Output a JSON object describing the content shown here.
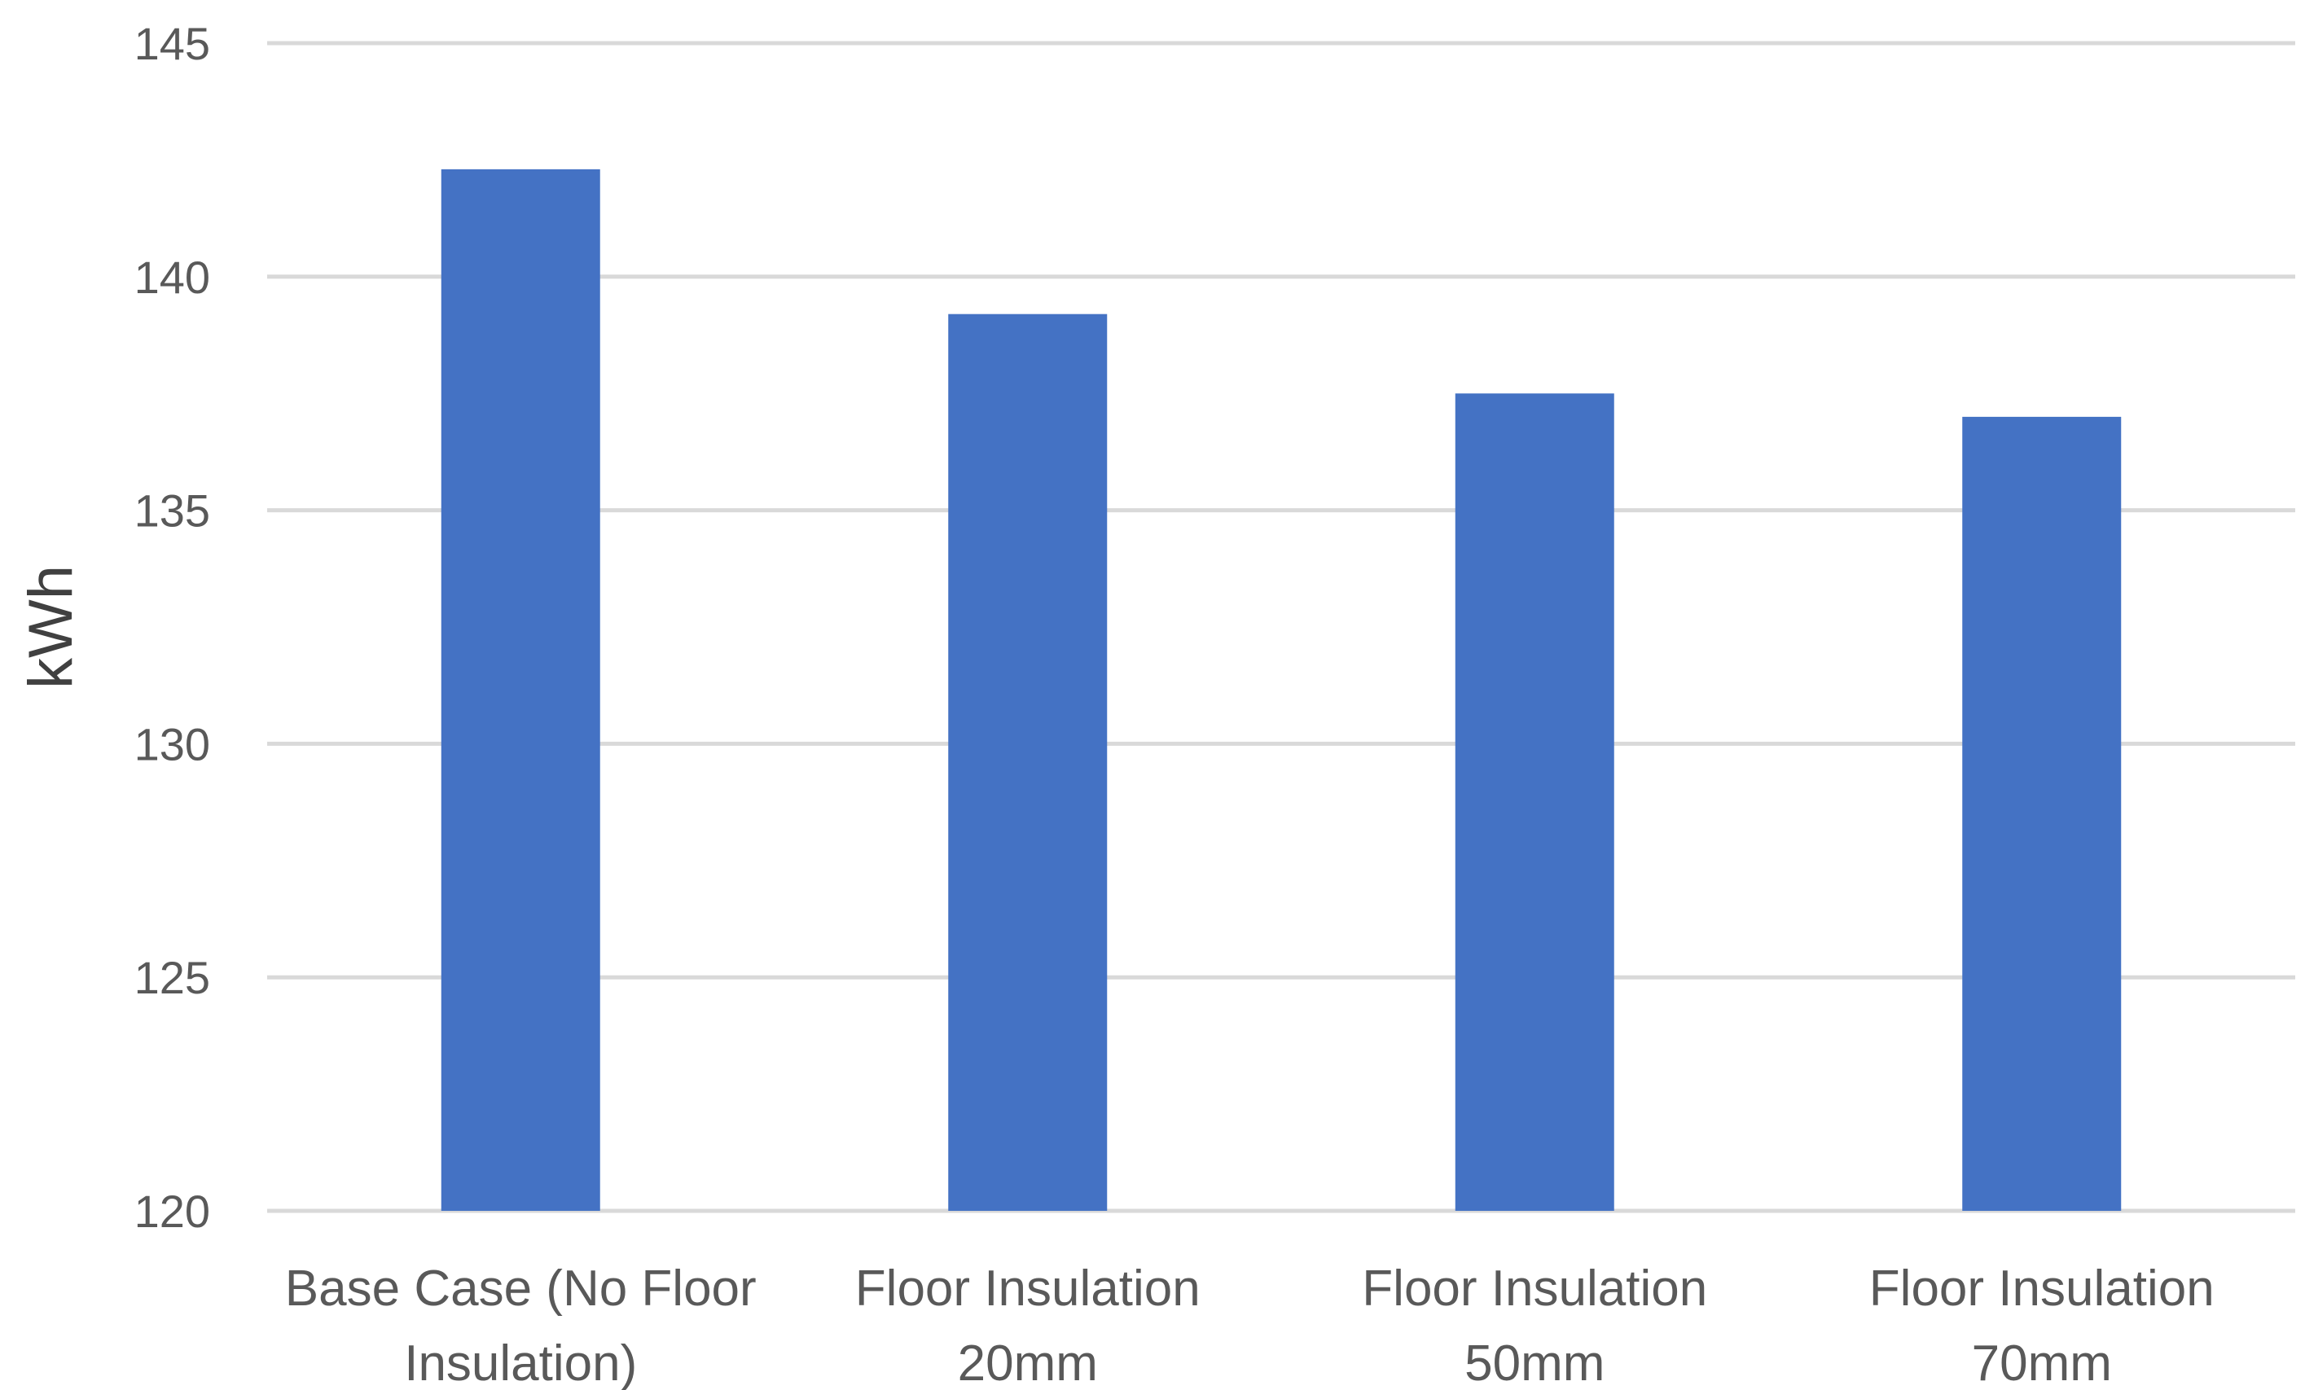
{
  "chart_data": {
    "type": "bar",
    "categories": [
      [
        "Base Case (No Floor",
        "Insulation)"
      ],
      [
        "Floor Insulation",
        "20mm"
      ],
      [
        "Floor Insulation",
        "50mm"
      ],
      [
        "Floor Insulation",
        "70mm"
      ]
    ],
    "values": [
      142.3,
      139.2,
      137.5,
      137.0
    ],
    "title": "",
    "xlabel": "",
    "ylabel": "kWh",
    "ylim": [
      120,
      145
    ],
    "yticks": [
      120,
      125,
      130,
      135,
      140,
      145
    ],
    "grid": true,
    "legend": "none",
    "bar_color": "#4472c4"
  }
}
